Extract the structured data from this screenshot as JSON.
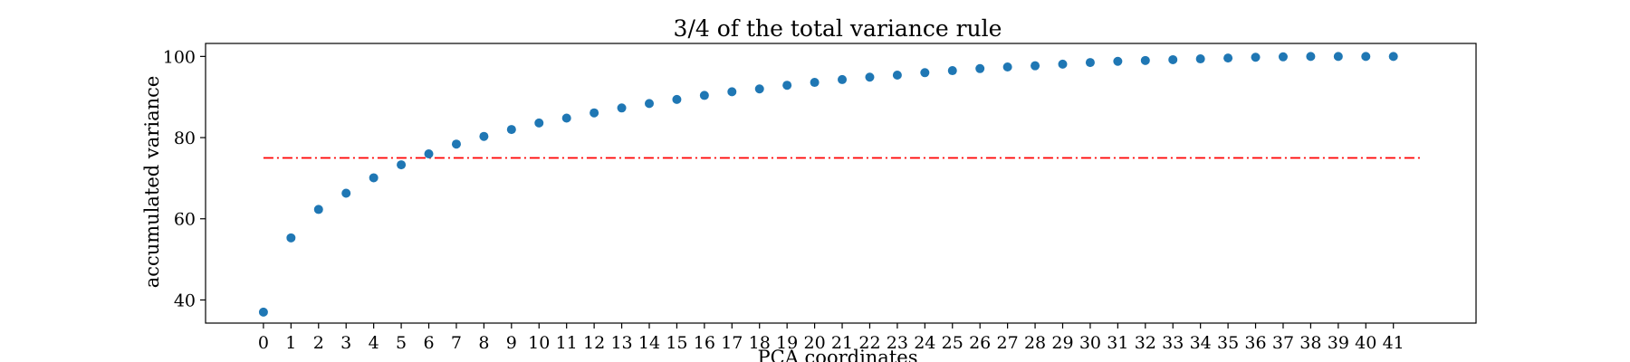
{
  "chart_data": {
    "type": "scatter",
    "title": "3/4 of the total variance rule",
    "xlabel": "PCA coordinates",
    "ylabel": "accumulated variance",
    "x": [
      0,
      1,
      2,
      3,
      4,
      5,
      6,
      7,
      8,
      9,
      10,
      11,
      12,
      13,
      14,
      15,
      16,
      17,
      18,
      19,
      20,
      21,
      22,
      23,
      24,
      25,
      26,
      27,
      28,
      29,
      30,
      31,
      32,
      33,
      34,
      35,
      36,
      37,
      38,
      39,
      40,
      41
    ],
    "series": [
      {
        "name": "",
        "color": "#1f77b4",
        "values": [
          37.0,
          55.3,
          62.3,
          66.3,
          70.1,
          73.3,
          76.0,
          78.4,
          80.3,
          82.0,
          83.6,
          84.8,
          86.1,
          87.3,
          88.4,
          89.4,
          90.4,
          91.3,
          92.0,
          92.9,
          93.6,
          94.3,
          94.9,
          95.4,
          96.0,
          96.5,
          97.0,
          97.4,
          97.7,
          98.1,
          98.5,
          98.8,
          99.0,
          99.2,
          99.4,
          99.6,
          99.8,
          99.9,
          100.0,
          100.0,
          100.0,
          100.0
        ]
      }
    ],
    "threshold": {
      "value": 75,
      "x_start": 0,
      "x_end": 42,
      "color": "#ff0000",
      "style": "dash-dot"
    },
    "xticks": [
      "0",
      "1",
      "2",
      "3",
      "4",
      "5",
      "6",
      "7",
      "8",
      "9",
      "10",
      "11",
      "12",
      "13",
      "14",
      "15",
      "16",
      "17",
      "18",
      "19",
      "20",
      "21",
      "22",
      "23",
      "24",
      "25",
      "26",
      "27",
      "28",
      "29",
      "30",
      "31",
      "32",
      "33",
      "34",
      "35",
      "36",
      "37",
      "38",
      "39",
      "40",
      "41"
    ],
    "yticks": [
      "40",
      "60",
      "80",
      "100"
    ],
    "xlim": [
      -2.1,
      44.0
    ],
    "ylim": [
      34.3,
      103.2
    ],
    "grid": false
  }
}
